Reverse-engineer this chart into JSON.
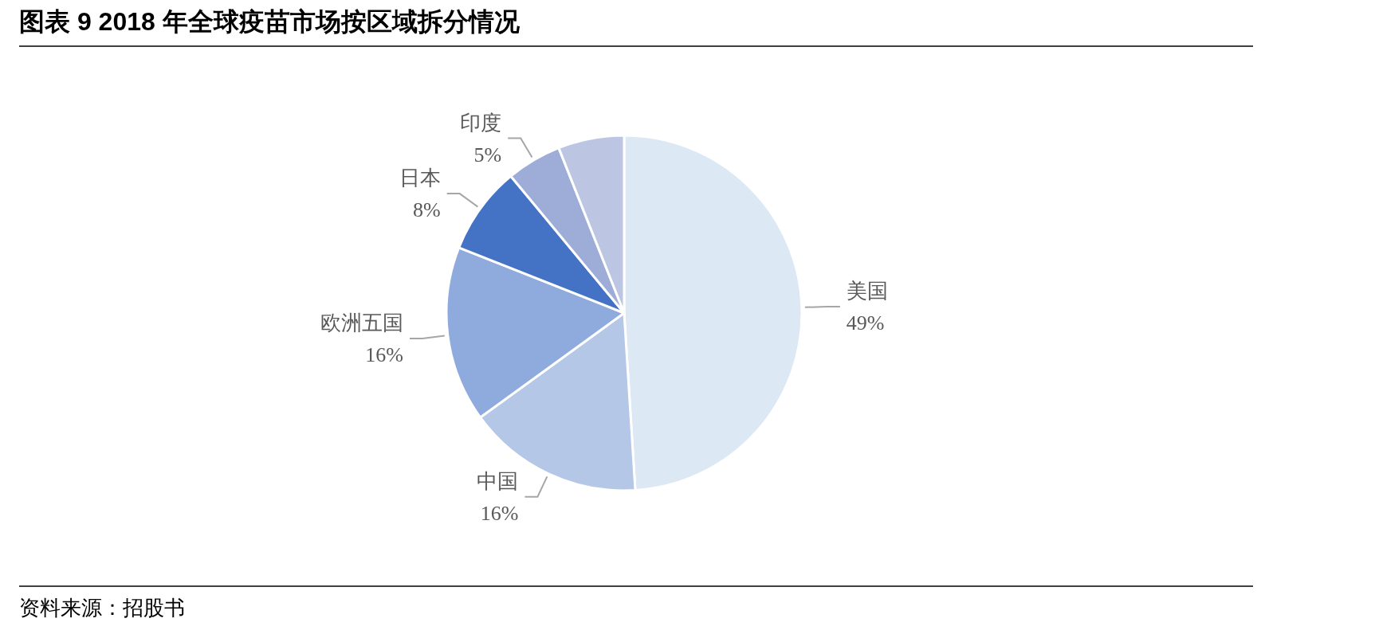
{
  "chart_data": {
    "type": "pie",
    "title": "图表 9 2018 年全球疫苗市场按区域拆分情况",
    "categories": [
      "美国",
      "中国",
      "欧洲五国",
      "日本",
      "印度",
      null
    ],
    "values": [
      49,
      16,
      16,
      8,
      5,
      6
    ],
    "value_labels": [
      "49%",
      "16%",
      "16%",
      "8%",
      "5%",
      null
    ],
    "colors": [
      "#dde8f5",
      "#b4c7e7",
      "#8faadc",
      "#4472c4",
      "#9dadd8",
      "#bcc6e3"
    ],
    "annotations": [
      "资料来源：招股书"
    ]
  }
}
